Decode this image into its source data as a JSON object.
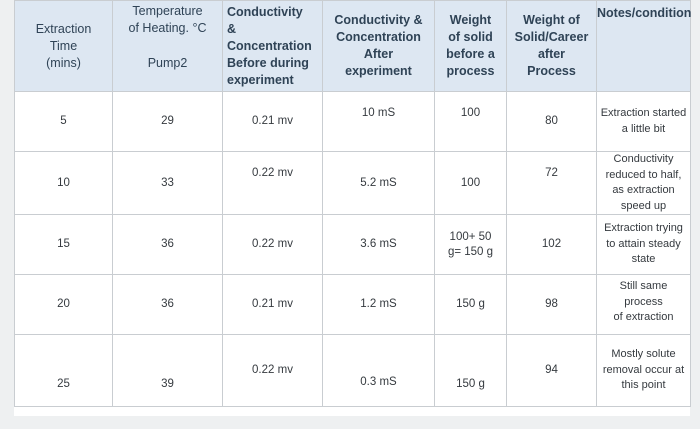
{
  "table": {
    "headers": {
      "time": [
        "Extraction",
        "Time",
        "(mins)"
      ],
      "temp": [
        "Temperature",
        "of Heating. °C",
        "Pump2"
      ],
      "cond_before": [
        "Conductivity",
        "&",
        "Concentration",
        "Before during",
        "experiment"
      ],
      "cond_after": [
        "Conductivity &",
        "Concentration",
        "After",
        "experiment"
      ],
      "weight_before": [
        "Weight",
        "of solid",
        "before a",
        "process"
      ],
      "weight_after": [
        "Weight of",
        "Solid/Career",
        "after",
        "Process"
      ],
      "notes": [
        "Notes/condition"
      ]
    },
    "rows": [
      {
        "time": "5",
        "temp": "29",
        "cond_before": "0.21 mv",
        "cond_after": "10 mS",
        "weight_before": [
          "100"
        ],
        "weight_after": "80",
        "notes": [
          "Extraction started",
          "a little bit"
        ]
      },
      {
        "time": "10",
        "temp": "33",
        "cond_before": "0.22 mv",
        "cond_after": "5.2 mS",
        "weight_before": [
          "100"
        ],
        "weight_after": "72",
        "notes": [
          "Conductivity",
          "reduced to half,",
          "as extraction",
          "speed up"
        ]
      },
      {
        "time": "15",
        "temp": "36",
        "cond_before": "0.22 mv",
        "cond_after": "3.6 mS",
        "weight_before": [
          "100+ 50",
          "g= 150 g"
        ],
        "weight_after": "102",
        "notes": [
          "Extraction trying",
          "to attain steady",
          "state"
        ]
      },
      {
        "time": "20",
        "temp": "36",
        "cond_before": "0.21 mv",
        "cond_after": "1.2 mS",
        "weight_before": [
          "150 g"
        ],
        "weight_after": "98",
        "notes": [
          "Still same process",
          "of extraction"
        ]
      },
      {
        "time": "25",
        "temp": "39",
        "cond_before": "0.22 mv",
        "cond_after": "0.3 mS",
        "weight_before": [
          "150 g"
        ],
        "weight_after": "94",
        "notes": [
          "Mostly solute",
          "removal occur at",
          "this point"
        ]
      }
    ]
  }
}
